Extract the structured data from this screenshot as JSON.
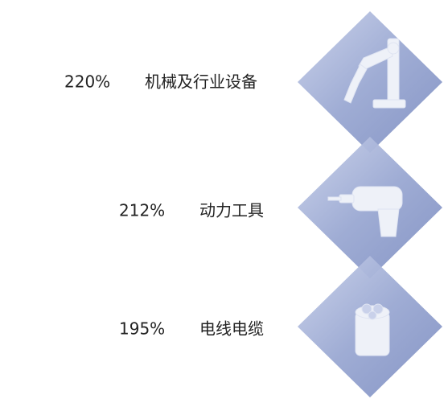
{
  "items": [
    {
      "percent": "220%",
      "name": "机械及行业设备"
    },
    {
      "percent": "212%",
      "name": "动力工具"
    },
    {
      "percent": "195%",
      "name": "电线电缆"
    }
  ]
}
